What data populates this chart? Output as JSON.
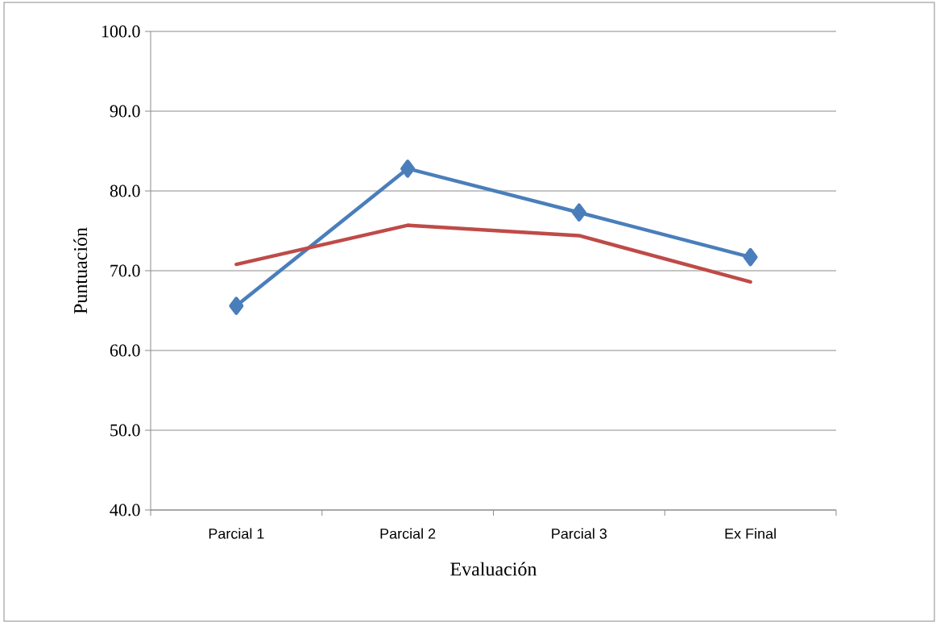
{
  "chart_data": {
    "type": "line",
    "xlabel": "Evaluación",
    "ylabel": "Puntuación",
    "categories": [
      "Parcial 1",
      "Parcial 2",
      "Parcial 3",
      "Ex Final"
    ],
    "series": [
      {
        "color": "#4a7ebb",
        "marker": "diamond",
        "values": [
          65.6,
          82.8,
          77.3,
          71.7
        ]
      },
      {
        "color": "#be4b48",
        "marker": "none",
        "values": [
          70.8,
          75.7,
          74.4,
          68.6
        ]
      }
    ],
    "ylim": [
      40,
      100
    ],
    "yticks": [
      {
        "value": 40,
        "label": "40.0"
      },
      {
        "value": 50,
        "label": "50.0"
      },
      {
        "value": 60,
        "label": "60.0"
      },
      {
        "value": 70,
        "label": "70.0"
      },
      {
        "value": 80,
        "label": "80.0"
      },
      {
        "value": 90,
        "label": "90.0"
      },
      {
        "value": 100,
        "label": "100.0"
      }
    ],
    "grid": "y",
    "legend": false
  }
}
